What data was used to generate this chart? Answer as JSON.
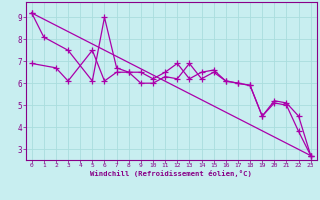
{
  "background_color": "#c8eef0",
  "line_color": "#aa00aa",
  "grid_color": "#aadddd",
  "xlabel": "Windchill (Refroidissement éolien,°C)",
  "xlim": [
    -0.5,
    23.5
  ],
  "ylim": [
    2.5,
    9.7
  ],
  "xticks": [
    0,
    1,
    2,
    3,
    4,
    5,
    6,
    7,
    8,
    9,
    10,
    11,
    12,
    13,
    14,
    15,
    16,
    17,
    18,
    19,
    20,
    21,
    22,
    23
  ],
  "yticks": [
    3,
    4,
    5,
    6,
    7,
    8,
    9
  ],
  "line1_x": [
    0,
    1,
    3,
    5,
    6,
    7,
    8,
    9,
    10,
    11,
    12,
    13,
    14,
    15,
    16,
    17,
    18,
    19,
    20,
    21,
    22,
    23
  ],
  "line1_y": [
    9.2,
    8.1,
    7.5,
    6.1,
    9.0,
    6.7,
    6.5,
    6.0,
    6.0,
    6.3,
    6.2,
    6.9,
    6.2,
    6.5,
    6.1,
    6.0,
    5.9,
    4.5,
    5.1,
    5.0,
    3.8,
    2.7
  ],
  "line2_x": [
    0,
    2,
    3,
    5,
    6,
    7,
    8,
    9,
    10,
    11,
    12,
    13,
    14,
    15,
    16,
    17,
    18,
    19,
    20,
    21,
    22,
    23
  ],
  "line2_y": [
    6.9,
    6.7,
    6.1,
    7.5,
    6.1,
    6.5,
    6.5,
    6.5,
    6.2,
    6.5,
    6.9,
    6.2,
    6.5,
    6.6,
    6.1,
    6.0,
    5.9,
    4.5,
    5.2,
    5.1,
    4.5,
    2.7
  ],
  "line3_x": [
    0,
    23
  ],
  "line3_y": [
    9.2,
    2.7
  ],
  "marker": "+",
  "markersize": 4,
  "linewidth": 0.9
}
